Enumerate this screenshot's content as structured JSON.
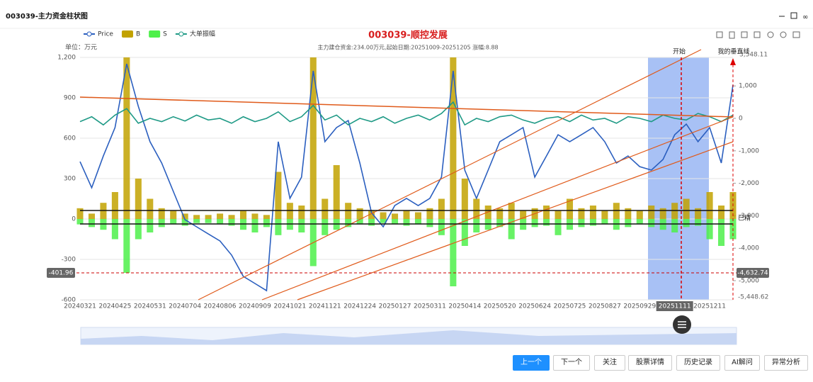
{
  "window_title": "003039-主力资金柱状图",
  "chart_data": {
    "type": "combo",
    "title": "003039-顺控发展",
    "subtitle": "主力建仓资金:234.00万元,起始日期:20251009-20251205 涨幅:8.88",
    "y_unit": "单位：万元",
    "categories": [
      "20240321",
      null,
      null,
      "20240425",
      null,
      null,
      "20240531",
      null,
      null,
      "20240704",
      null,
      null,
      "20240806",
      null,
      null,
      "20240909",
      null,
      null,
      "20241021",
      null,
      null,
      "20241121",
      null,
      null,
      "20241224",
      null,
      null,
      "20250127",
      null,
      null,
      "20250311",
      null,
      null,
      "20250414",
      null,
      null,
      "20250520",
      null,
      null,
      "20250624",
      null,
      null,
      "20250725",
      null,
      null,
      "20250827",
      null,
      null,
      "20250929",
      null,
      null,
      "20251111",
      null,
      null,
      "20251211",
      null,
      null
    ],
    "series": [
      {
        "name": "Price",
        "type": "line",
        "color": "#2b5fbf",
        "values": [
          426,
          232,
          468,
          679,
          1152,
          837,
          574,
          416,
          205,
          -5,
          -58,
          -111,
          -163,
          -268,
          -426,
          -479,
          -532,
          574,
          153,
          311,
          1100,
          574,
          679,
          731,
          416,
          47,
          -58,
          100,
          153,
          100,
          153,
          311,
          1100,
          363,
          153,
          363,
          574,
          626,
          679,
          311,
          468,
          626,
          574,
          626,
          679,
          574,
          416,
          468,
          389,
          363,
          442,
          626,
          705,
          574,
          679,
          416,
          995
        ]
      },
      {
        "name": "B",
        "type": "bar",
        "color": "#c2a200",
        "values": [
          80,
          40,
          120,
          200,
          1200,
          300,
          150,
          80,
          60,
          40,
          30,
          30,
          40,
          30,
          60,
          40,
          30,
          350,
          120,
          100,
          1200,
          150,
          400,
          120,
          80,
          60,
          50,
          40,
          60,
          50,
          80,
          150,
          1200,
          300,
          150,
          100,
          80,
          120,
          60,
          80,
          100,
          60,
          150,
          80,
          100,
          60,
          120,
          80,
          60,
          100,
          80,
          120,
          150,
          80,
          200,
          100,
          200
        ]
      },
      {
        "name": "S",
        "type": "bar",
        "color": "#4ef04a",
        "values": [
          -40,
          -60,
          -80,
          -150,
          -400,
          -150,
          -100,
          -60,
          -40,
          -50,
          -30,
          -30,
          -40,
          -50,
          -80,
          -100,
          -60,
          -120,
          -80,
          -100,
          -350,
          -120,
          -80,
          -60,
          -40,
          -50,
          -30,
          -40,
          -50,
          -40,
          -60,
          -120,
          -500,
          -200,
          -100,
          -80,
          -60,
          -150,
          -80,
          -60,
          -50,
          -120,
          -80,
          -60,
          -50,
          -40,
          -80,
          -60,
          -40,
          -60,
          -80,
          -100,
          -60,
          -50,
          -150,
          -200,
          -150
        ]
      },
      {
        "name": "大单振幅",
        "type": "line",
        "axis": "y2",
        "color": "#1f9a86",
        "values": [
          -100,
          50,
          -200,
          100,
          300,
          -150,
          0,
          -100,
          50,
          -80,
          100,
          -50,
          0,
          -150,
          50,
          -100,
          0,
          200,
          -100,
          50,
          400,
          -50,
          100,
          -200,
          0,
          -100,
          50,
          -150,
          0,
          100,
          -50,
          150,
          500,
          -200,
          0,
          -100,
          50,
          100,
          -50,
          -150,
          0,
          50,
          -100,
          100,
          -50,
          0,
          -150,
          50,
          0,
          -100,
          100,
          0,
          -50,
          150,
          50,
          -100,
          100
        ]
      }
    ],
    "ylim": [
      -600,
      1200
    ],
    "yticks": [
      {
        "value": 1200,
        "label": "1,200"
      },
      900,
      600,
      300,
      0,
      -300,
      -600
    ],
    "y2lim": [
      -5590,
      1878
    ],
    "y2ticks": [
      {
        "value": 1000,
        "label": "1,000"
      },
      0,
      {
        "value": -1000,
        "label": "-1,000"
      },
      {
        "value": -2000,
        "label": "-2,000"
      },
      {
        "value": -3000,
        "label": "-3,000"
      },
      {
        "value": -4000,
        "label": "-4,000"
      },
      {
        "value": -5000,
        "label": "-5,000"
      }
    ],
    "grid": true,
    "annotations": [
      "-401.96",
      "-4,632.74",
      "开始",
      "我的垂直线",
      "已精",
      "3,548.11",
      "-5,448.62"
    ]
  },
  "buttons": [
    "上一个",
    "下一个",
    "关注",
    "股票详情",
    "历史记录",
    "AI解问",
    "异常分析"
  ]
}
